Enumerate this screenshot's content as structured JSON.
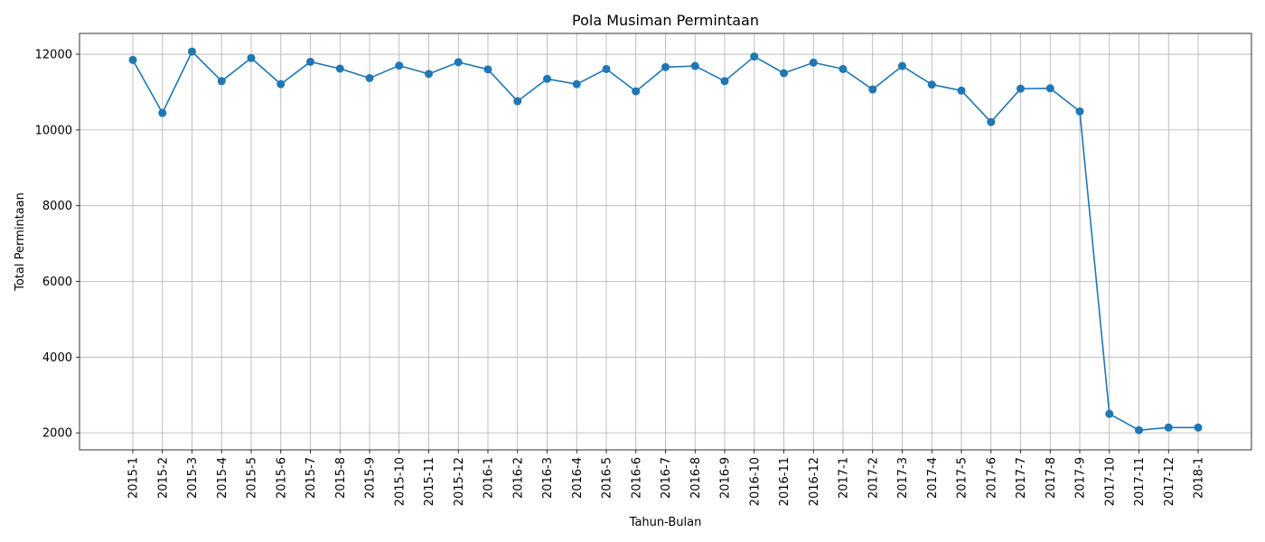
{
  "chart_data": {
    "type": "line",
    "title": "Pola Musiman Permintaan",
    "xlabel": "Tahun-Bulan",
    "ylabel": "Total Permintaan",
    "categories": [
      "2015-1",
      "2015-2",
      "2015-3",
      "2015-4",
      "2015-5",
      "2015-6",
      "2015-7",
      "2015-8",
      "2015-9",
      "2015-10",
      "2015-11",
      "2015-12",
      "2016-1",
      "2016-2",
      "2016-3",
      "2016-4",
      "2016-5",
      "2016-6",
      "2016-7",
      "2016-8",
      "2016-9",
      "2016-10",
      "2016-11",
      "2016-12",
      "2017-1",
      "2017-2",
      "2017-3",
      "2017-4",
      "2017-5",
      "2017-6",
      "2017-7",
      "2017-8",
      "2017-9",
      "2017-10",
      "2017-11",
      "2017-12",
      "2018-1"
    ],
    "series": [
      {
        "values": [
          11850,
          10450,
          12070,
          11290,
          11900,
          11210,
          11800,
          11620,
          11370,
          11700,
          11480,
          11790,
          11600,
          10760,
          11350,
          11210,
          11610,
          11020,
          11660,
          11690,
          11290,
          11940,
          11500,
          11780,
          11610,
          11070,
          11690,
          11200,
          11040,
          10210,
          11090,
          11100,
          10490,
          2500,
          2070,
          2140,
          2140
        ],
        "color": "#1f77b4",
        "marker": "circle"
      }
    ],
    "yticks": [
      2000,
      4000,
      6000,
      8000,
      10000,
      12000
    ],
    "ylim": [
      1550,
      12550
    ],
    "grid": true
  }
}
